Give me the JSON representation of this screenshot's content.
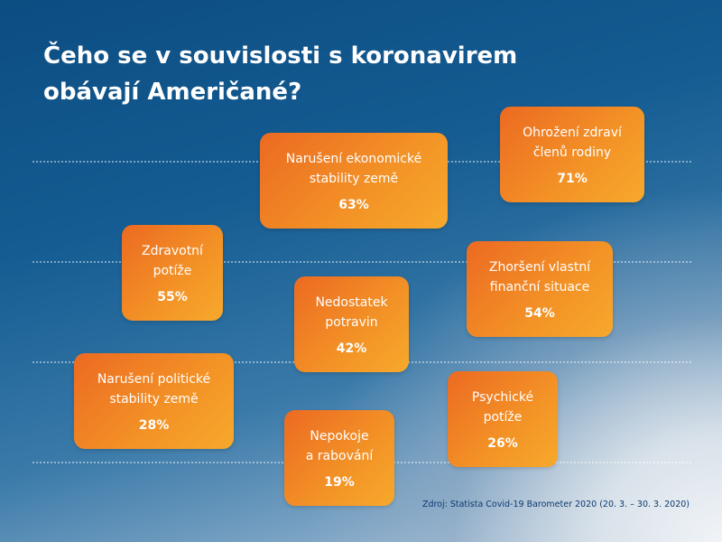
{
  "title_line1": "Čeho se v souvislosti s koronavirem",
  "title_line2": "obávají Američané?",
  "source": "Zdroj: Statista Covid-19 Barometer 2020 (20. 3. – 30. 3. 2020)",
  "colors": {
    "card_start": "#ec6a22",
    "card_end": "#f7a92c",
    "text": "#ffffff",
    "source_text": "#0d3a6e"
  },
  "chart_data": {
    "type": "bar",
    "title": "Čeho se v souvislosti s koronavirem obávají Američané?",
    "unit": "%",
    "categories": [
      "Ohrožení zdraví členů rodiny",
      "Narušení ekonomické stability země",
      "Zdravotní potíže",
      "Zhoršení vlastní finanční situace",
      "Nedostatek potravin",
      "Narušení politické stability země",
      "Psychické potíže",
      "Nepokoje a rabování"
    ],
    "values": [
      71,
      63,
      55,
      54,
      42,
      28,
      26,
      19
    ],
    "items": [
      {
        "label": "Ohrožení zdraví\nčlenů rodiny",
        "value": 71,
        "display": "71%"
      },
      {
        "label": "Narušení ekonomické\nstability země",
        "value": 63,
        "display": "63%"
      },
      {
        "label": "Zdravotní\npotíže",
        "value": 55,
        "display": "55%"
      },
      {
        "label": "Zhoršení vlastní\nfinanční situace",
        "value": 54,
        "display": "54%"
      },
      {
        "label": "Nedostatek\npotravin",
        "value": 42,
        "display": "42%"
      },
      {
        "label": "Narušení politické\nstability země",
        "value": 28,
        "display": "28%"
      },
      {
        "label": "Psychické\npotíže",
        "value": 26,
        "display": "26%"
      },
      {
        "label": "Nepokoje\na rabování",
        "value": 19,
        "display": "19%"
      }
    ]
  }
}
